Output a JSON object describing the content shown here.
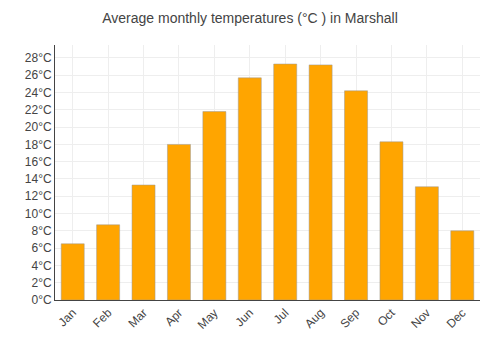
{
  "chart_data": {
    "type": "bar",
    "title": "Average monthly temperatures (°C ) in Marshall",
    "categories": [
      "Jan",
      "Feb",
      "Mar",
      "Apr",
      "May",
      "Jun",
      "Jul",
      "Aug",
      "Sep",
      "Oct",
      "Nov",
      "Dec"
    ],
    "values": [
      6.5,
      8.7,
      13.3,
      18.0,
      21.8,
      25.7,
      27.3,
      27.2,
      24.2,
      18.3,
      13.1,
      8.0
    ],
    "color": "#FFA500",
    "ylim": [
      0,
      29.5
    ],
    "yticks": [
      {
        "value": 0,
        "label": "0°C"
      },
      {
        "value": 2,
        "label": "2°C"
      },
      {
        "value": 4,
        "label": "4°C"
      },
      {
        "value": 6,
        "label": "6°C"
      },
      {
        "value": 8,
        "label": "8°C"
      },
      {
        "value": 10,
        "label": "10°C"
      },
      {
        "value": 12,
        "label": "12°C"
      },
      {
        "value": 14,
        "label": "14°C"
      },
      {
        "value": 16,
        "label": "16°C"
      },
      {
        "value": 18,
        "label": "18°C"
      },
      {
        "value": 20,
        "label": "20°C"
      },
      {
        "value": 22,
        "label": "22°C"
      },
      {
        "value": 24,
        "label": "24°C"
      },
      {
        "value": 26,
        "label": "26°C"
      },
      {
        "value": 28,
        "label": "28°C"
      }
    ],
    "grid": true
  }
}
